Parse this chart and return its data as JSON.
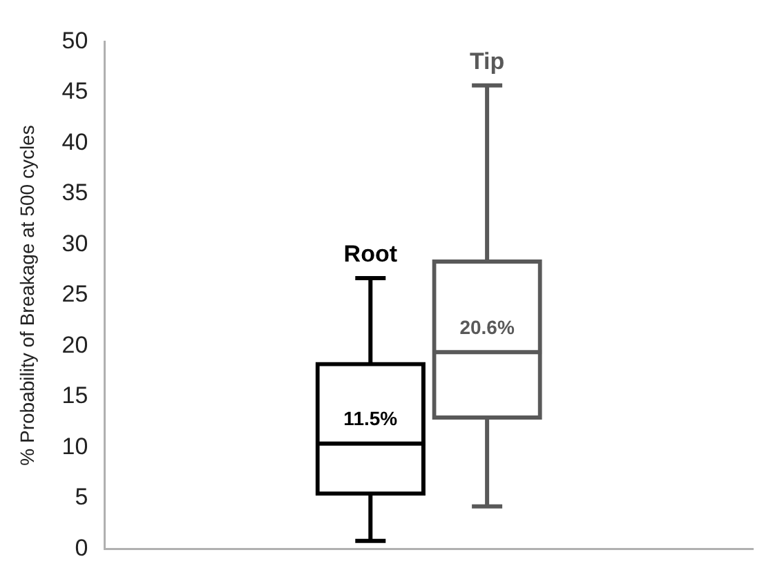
{
  "chart_data": {
    "type": "box",
    "ylabel": "% Probability of Breakage at 500 cycles",
    "categories": [
      "Root",
      "Tip"
    ],
    "boxes": [
      {
        "low": 0.8,
        "q1": 5.3,
        "median": 10.4,
        "q3": 18.4,
        "high": 26.7
      },
      {
        "low": 4.2,
        "q1": 12.8,
        "median": 19.4,
        "q3": 28.5,
        "high": 45.7
      }
    ],
    "colors": [
      "#000000",
      "#595959"
    ],
    "ylim": [
      0,
      50
    ],
    "yticks": [
      0,
      5,
      10,
      15,
      20,
      25,
      30,
      35,
      40,
      45,
      50
    ],
    "grid": false,
    "tick_labels": "y",
    "annotations": [
      "11.5%",
      "20.6%"
    ]
  }
}
